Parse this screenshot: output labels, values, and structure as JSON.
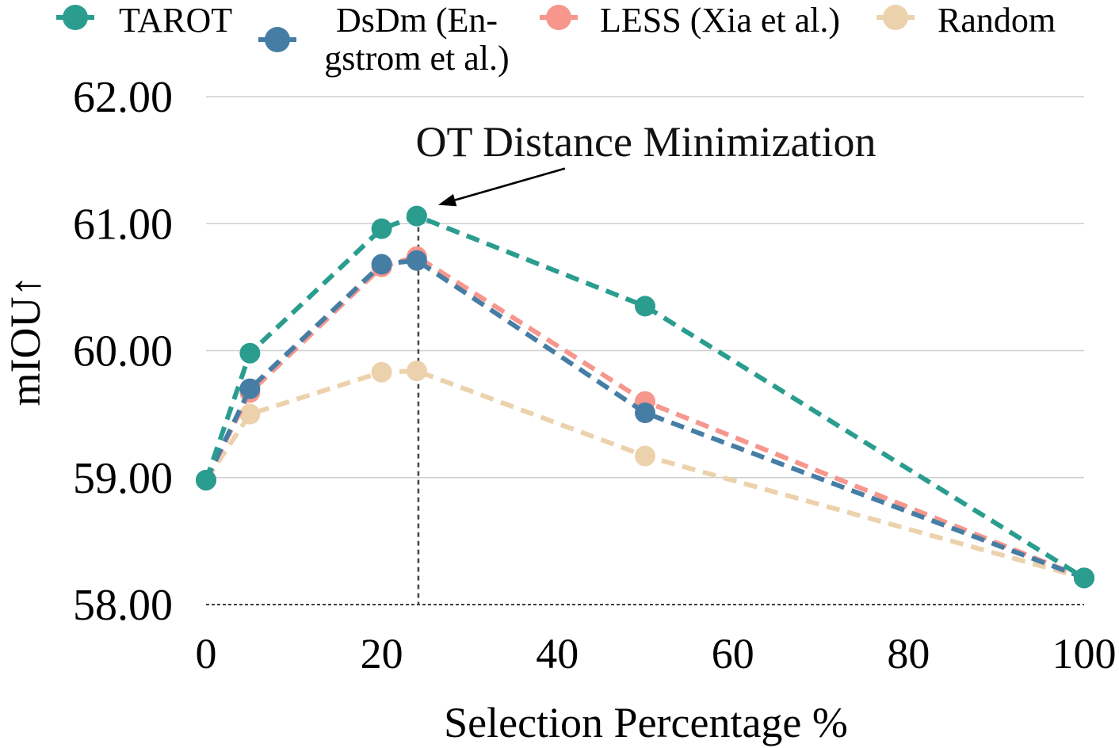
{
  "chart_data": {
    "type": "line",
    "title": "",
    "xlabel": "Selection Percentage %",
    "ylabel": "mIOU↑",
    "xlim": [
      0,
      100
    ],
    "ylim": [
      58,
      62
    ],
    "x_ticks": [
      "0",
      "20",
      "40",
      "60",
      "80",
      "100"
    ],
    "y_ticks": [
      "58.00",
      "59.00",
      "60.00",
      "61.00",
      "62.00"
    ],
    "grid": true,
    "legend_position": "top",
    "line_style": "dashed",
    "marker": "circle",
    "series": [
      {
        "name_lines": [
          "TAROT"
        ],
        "color": "#2a9d8f",
        "x": [
          0,
          5,
          20,
          24,
          50,
          100
        ],
        "y": [
          58.98,
          59.98,
          60.96,
          61.06,
          60.35,
          58.21
        ]
      },
      {
        "name_lines": [
          "DsDm (En-",
          "gstrom et al.)"
        ],
        "color": "#467da5",
        "x": [
          0,
          5,
          20,
          24,
          50,
          100
        ],
        "y": [
          58.98,
          59.7,
          60.68,
          60.71,
          59.51,
          58.21
        ]
      },
      {
        "name_lines": [
          "LESS (Xia et al.)"
        ],
        "color": "#f6968c",
        "x": [
          0,
          5,
          20,
          24,
          50,
          100
        ],
        "y": [
          58.98,
          59.67,
          60.66,
          60.74,
          59.6,
          58.21
        ]
      },
      {
        "name_lines": [
          "Random"
        ],
        "color": "#ecd2ac",
        "x": [
          0,
          5,
          20,
          24,
          50,
          100
        ],
        "y": [
          58.98,
          59.5,
          59.83,
          59.84,
          59.17,
          58.21
        ]
      }
    ],
    "annotations": [
      {
        "text": "OT Distance Minimization",
        "x": 24,
        "y": 61.06
      }
    ]
  }
}
